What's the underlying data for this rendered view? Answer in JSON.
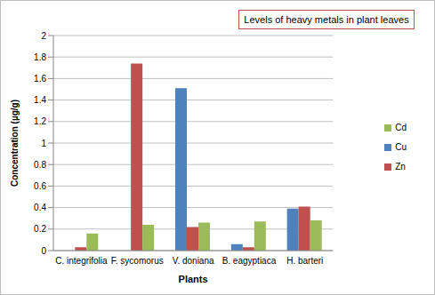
{
  "chart_data": {
    "type": "bar",
    "title": "Levels of heavy metals in plant leaves",
    "x_label": "Plants",
    "y_label": "Concentration (µg/g)",
    "categories": [
      "C. integrifolia",
      "F. sycomorus",
      "V. doniana",
      "B. eagyptiaca",
      "H. barteri"
    ],
    "series": [
      {
        "name": "Cu",
        "color": "#4f81bd",
        "values": [
          0,
          0,
          1.51,
          0.06,
          0.39
        ]
      },
      {
        "name": "Zn",
        "color": "#c0504d",
        "values": [
          0.03,
          1.74,
          0.22,
          0.03,
          0.41
        ]
      },
      {
        "name": "Cd",
        "color": "#9bbb59",
        "values": [
          0.16,
          0.24,
          0.26,
          0.27,
          0.28
        ]
      }
    ],
    "ylim": [
      0,
      2
    ],
    "yticks": [
      0,
      0.2,
      0.4,
      0.6,
      0.8,
      1,
      1.2,
      1.4,
      1.6,
      1.8,
      2
    ],
    "grid": true,
    "legend": "right"
  }
}
